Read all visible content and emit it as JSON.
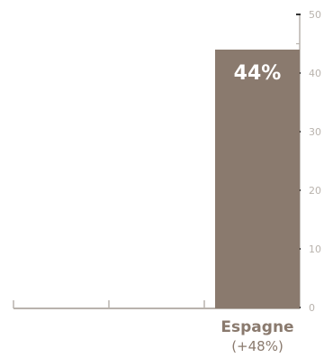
{
  "chart_data": {
    "type": "bar",
    "categories": [
      "",
      "",
      "Espagne"
    ],
    "category_sublabels": [
      "",
      "",
      "(+48%)"
    ],
    "values": [
      null,
      null,
      44
    ],
    "data_labels": [
      "",
      "",
      "44%"
    ],
    "ylim": [
      0,
      50
    ],
    "yticks": [
      0,
      10,
      20,
      30,
      40,
      50
    ],
    "ytick_labels": [
      "0",
      "10",
      "20",
      "30",
      "40",
      "50"
    ],
    "y_axis_position": "right",
    "grid": false,
    "colors": {
      "bar": "#8a7a6e",
      "axis": "#b9b3ad",
      "tick_text": "#b9b3ad",
      "category_text": "#8a7a6e",
      "value_text": "#ffffff",
      "major_tick": "#333333"
    }
  }
}
